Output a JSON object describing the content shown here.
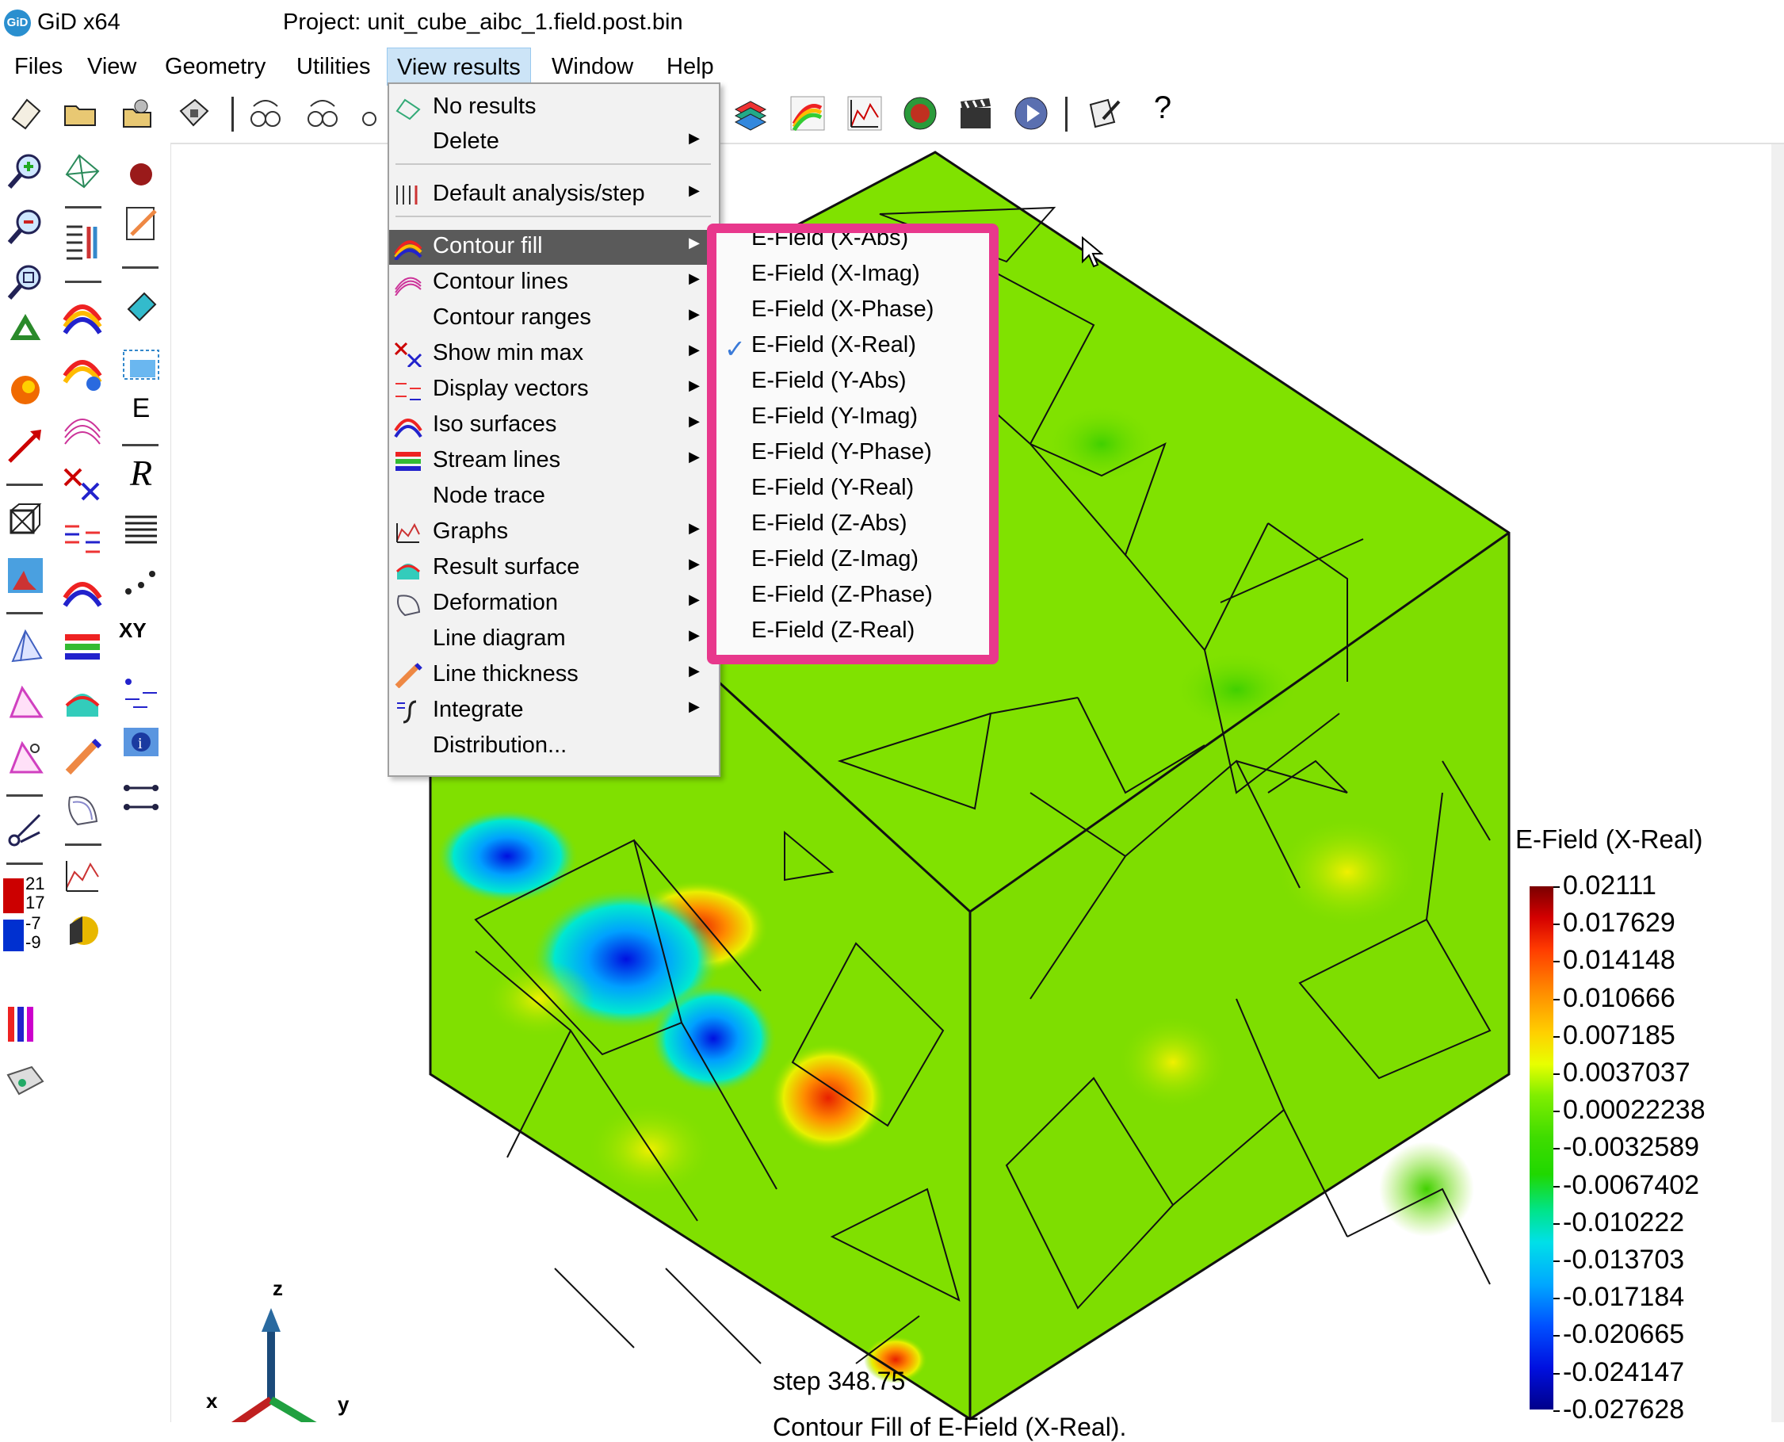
{
  "app": {
    "name": "GiD x64",
    "logo_text": "GiD",
    "project_title": "Project: unit_cube_aibc_1.field.post.bin"
  },
  "menubar": {
    "items": [
      "Files",
      "View",
      "Geometry",
      "Utilities",
      "View results",
      "Window",
      "Help"
    ],
    "active": "View results"
  },
  "view_results_menu": {
    "items": [
      {
        "label": "No results",
        "icon": "no-results-icon",
        "submenu": false
      },
      {
        "label": "Delete",
        "icon": "",
        "submenu": true
      },
      {
        "label": "Default analysis/step",
        "icon": "default-analysis-icon",
        "submenu": true
      },
      {
        "label": "Contour fill",
        "icon": "contour-fill-icon",
        "submenu": true,
        "highlighted": true
      },
      {
        "label": "Contour lines",
        "icon": "contour-lines-icon",
        "submenu": true
      },
      {
        "label": "Contour ranges",
        "icon": "",
        "submenu": true
      },
      {
        "label": "Show min max",
        "icon": "show-min-max-icon",
        "submenu": true
      },
      {
        "label": "Display vectors",
        "icon": "display-vectors-icon",
        "submenu": true
      },
      {
        "label": "Iso surfaces",
        "icon": "iso-surfaces-icon",
        "submenu": true
      },
      {
        "label": "Stream lines",
        "icon": "stream-lines-icon",
        "submenu": true
      },
      {
        "label": "Node trace",
        "icon": "",
        "submenu": false
      },
      {
        "label": "Graphs",
        "icon": "graphs-icon",
        "submenu": true
      },
      {
        "label": "Result surface",
        "icon": "result-surface-icon",
        "submenu": true
      },
      {
        "label": "Deformation",
        "icon": "deformation-icon",
        "submenu": true
      },
      {
        "label": "Line diagram",
        "icon": "",
        "submenu": true
      },
      {
        "label": "Line thickness",
        "icon": "line-thickness-icon",
        "submenu": true
      },
      {
        "label": "Integrate",
        "icon": "integrate-icon",
        "submenu": true
      },
      {
        "label": "Distribution...",
        "icon": "",
        "submenu": false
      }
    ]
  },
  "contour_fill_submenu": {
    "items": [
      {
        "label": "E-Field (X-Abs)",
        "checked": false
      },
      {
        "label": "E-Field (X-Imag)",
        "checked": false
      },
      {
        "label": "E-Field (X-Phase)",
        "checked": false
      },
      {
        "label": "E-Field (X-Real)",
        "checked": true
      },
      {
        "label": "E-Field (Y-Abs)",
        "checked": false
      },
      {
        "label": "E-Field (Y-Imag)",
        "checked": false
      },
      {
        "label": "E-Field (Y-Phase)",
        "checked": false
      },
      {
        "label": "E-Field (Y-Real)",
        "checked": false
      },
      {
        "label": "E-Field (Z-Abs)",
        "checked": false
      },
      {
        "label": "E-Field (Z-Imag)",
        "checked": false
      },
      {
        "label": "E-Field (Z-Phase)",
        "checked": false
      },
      {
        "label": "E-Field (Z-Real)",
        "checked": false
      }
    ],
    "highlight_color": "#e8388c"
  },
  "legend": {
    "title": "E-Field (X-Real)",
    "values": [
      "0.02111",
      "0.017629",
      "0.014148",
      "0.010666",
      "0.007185",
      "0.0037037",
      "0.00022238",
      "-0.0032589",
      "-0.0067402",
      "-0.010222",
      "-0.013703",
      "-0.017184",
      "-0.020665",
      "-0.024147",
      "-0.027628"
    ]
  },
  "viewport": {
    "step_label": "step 348.75",
    "bottom_text": "Contour Fill of E-Field (X-Real).",
    "axes": {
      "x": "x",
      "y": "y",
      "z": "z"
    }
  },
  "left_legend_icon": {
    "top": [
      "21",
      "17"
    ],
    "bottom": [
      "-7",
      "-9"
    ]
  },
  "left_tools": {
    "text_icon": "E",
    "text_icon_r": "R",
    "text_icon_xy": "XY"
  },
  "toolbar_help_glyph": "?",
  "colors": {
    "menu_highlight": "#5a5a5a",
    "submenu_border": "#e8388c",
    "mesh_green": "#7ee000"
  }
}
